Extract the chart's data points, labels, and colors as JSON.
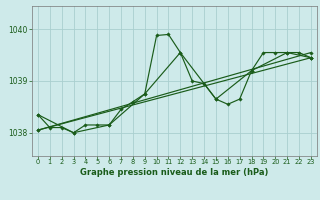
{
  "title": "Graphe pression niveau de la mer (hPa)",
  "background_color": "#ceeaea",
  "grid_color": "#aacfcf",
  "line_color": "#1a5c1a",
  "marker_color": "#1a5c1a",
  "xlim": [
    -0.5,
    23.5
  ],
  "ylim": [
    1037.55,
    1040.45
  ],
  "yticks": [
    1038,
    1039,
    1040
  ],
  "xticks": [
    0,
    1,
    2,
    3,
    4,
    5,
    6,
    7,
    8,
    9,
    10,
    11,
    12,
    13,
    14,
    15,
    16,
    17,
    18,
    19,
    20,
    21,
    22,
    23
  ],
  "series": [
    {
      "x": [
        0,
        1,
        2,
        3,
        4,
        5,
        6,
        7,
        8,
        9,
        10,
        11,
        12,
        13,
        14,
        15,
        16,
        17,
        18,
        19,
        20,
        21,
        22,
        23
      ],
      "y": [
        1038.35,
        1038.1,
        1038.1,
        1038.0,
        1038.15,
        1038.15,
        1038.15,
        1038.45,
        1038.6,
        1038.75,
        1039.88,
        1039.9,
        1039.55,
        1039.0,
        1038.95,
        1038.65,
        1038.55,
        1038.65,
        1039.2,
        1039.55,
        1039.55,
        1039.55,
        1039.55,
        1039.45
      ]
    },
    {
      "x": [
        0,
        3,
        6,
        9,
        12,
        15,
        18,
        21,
        23
      ],
      "y": [
        1038.35,
        1038.0,
        1038.15,
        1038.75,
        1039.55,
        1038.65,
        1039.2,
        1039.55,
        1039.45
      ]
    },
    {
      "x": [
        0,
        23
      ],
      "y": [
        1038.05,
        1039.55
      ]
    },
    {
      "x": [
        0,
        23
      ],
      "y": [
        1038.05,
        1039.45
      ]
    }
  ]
}
